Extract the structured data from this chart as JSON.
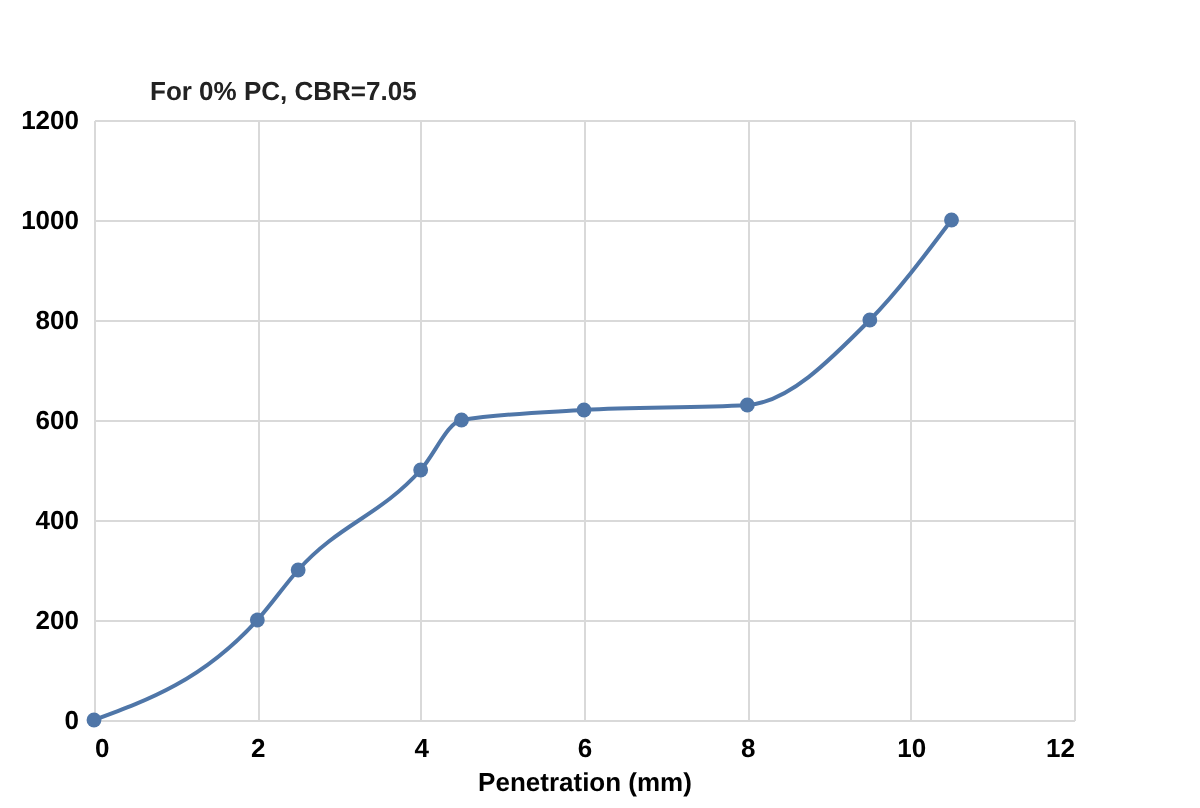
{
  "chart_data": {
    "type": "line",
    "xlabel": "Penetration (mm)",
    "x": [
      0,
      2,
      2.5,
      4,
      4.5,
      6,
      8,
      9.5,
      10.5
    ],
    "series": [
      {
        "color": "#4f76a8",
        "values": [
          0,
          200,
          300,
          500,
          600,
          620,
          630,
          800,
          1000
        ]
      }
    ],
    "xlim": [
      0,
      12
    ],
    "xticks": [
      0,
      2,
      4,
      6,
      8,
      10,
      12
    ],
    "ylim": [
      0,
      1200
    ],
    "yticks": [
      0,
      200,
      400,
      600,
      800,
      1000,
      1200
    ],
    "grid": true,
    "marker": "circle",
    "line_style": "solid",
    "annotations": [
      "For 0% PC, CBR=7.05"
    ]
  }
}
